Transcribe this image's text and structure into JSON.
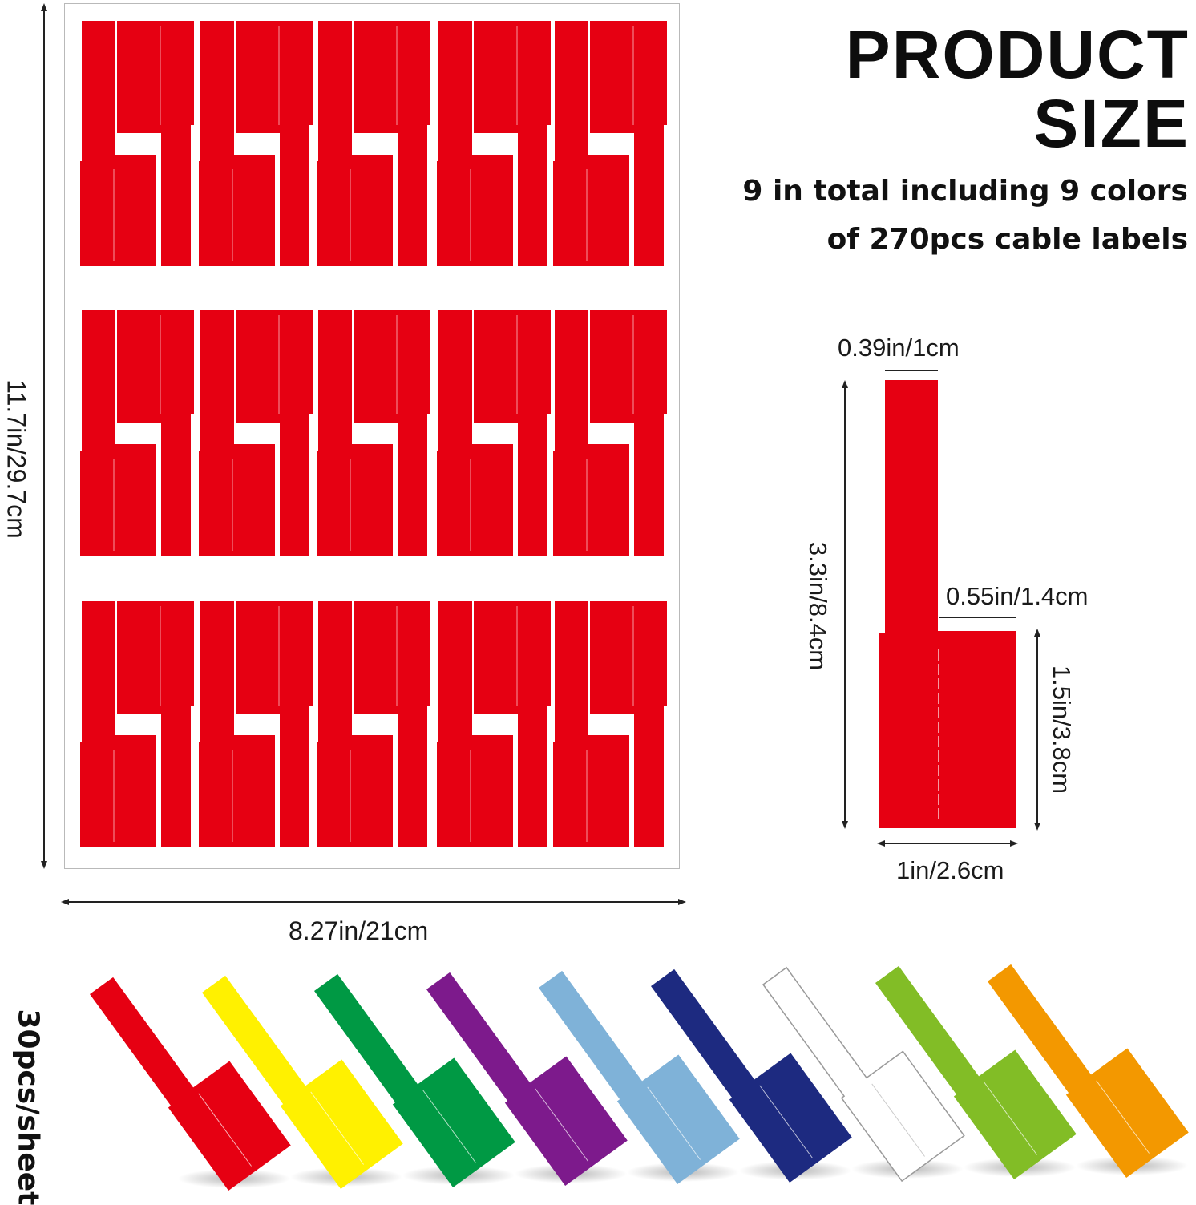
{
  "title": {
    "line1": "PRODUCT",
    "line2": "SIZE"
  },
  "subtitle": {
    "line1": "9 in total  including 9 colors",
    "line2": "of 270pcs cable labels"
  },
  "sheet": {
    "height_label": "11.7in/29.7cm",
    "width_label": "8.27in/21cm",
    "label_color": "#e60012",
    "rows": 3,
    "labels_per_row": 10
  },
  "label_dimensions": {
    "top_width": "0.39in/1cm",
    "flag_width": "0.55in/1.4cm",
    "total_height": "3.3in/8.4cm",
    "flag_height": "1.5in/3.8cm",
    "total_width": "1in/2.6cm"
  },
  "pcs_per_sheet": "30pcs/sheet",
  "color_samples": [
    {
      "name": "red-label",
      "color": "#e60012"
    },
    {
      "name": "yellow-label",
      "color": "#fff100"
    },
    {
      "name": "green-label",
      "color": "#009944"
    },
    {
      "name": "purple-label",
      "color": "#7d1a8c"
    },
    {
      "name": "light-blue-label",
      "color": "#7fb2d8"
    },
    {
      "name": "navy-label",
      "color": "#1d2a80"
    },
    {
      "name": "white-label",
      "color": "#ffffff"
    },
    {
      "name": "lime-green-label",
      "color": "#82bd26"
    },
    {
      "name": "orange-label",
      "color": "#f39800"
    }
  ]
}
